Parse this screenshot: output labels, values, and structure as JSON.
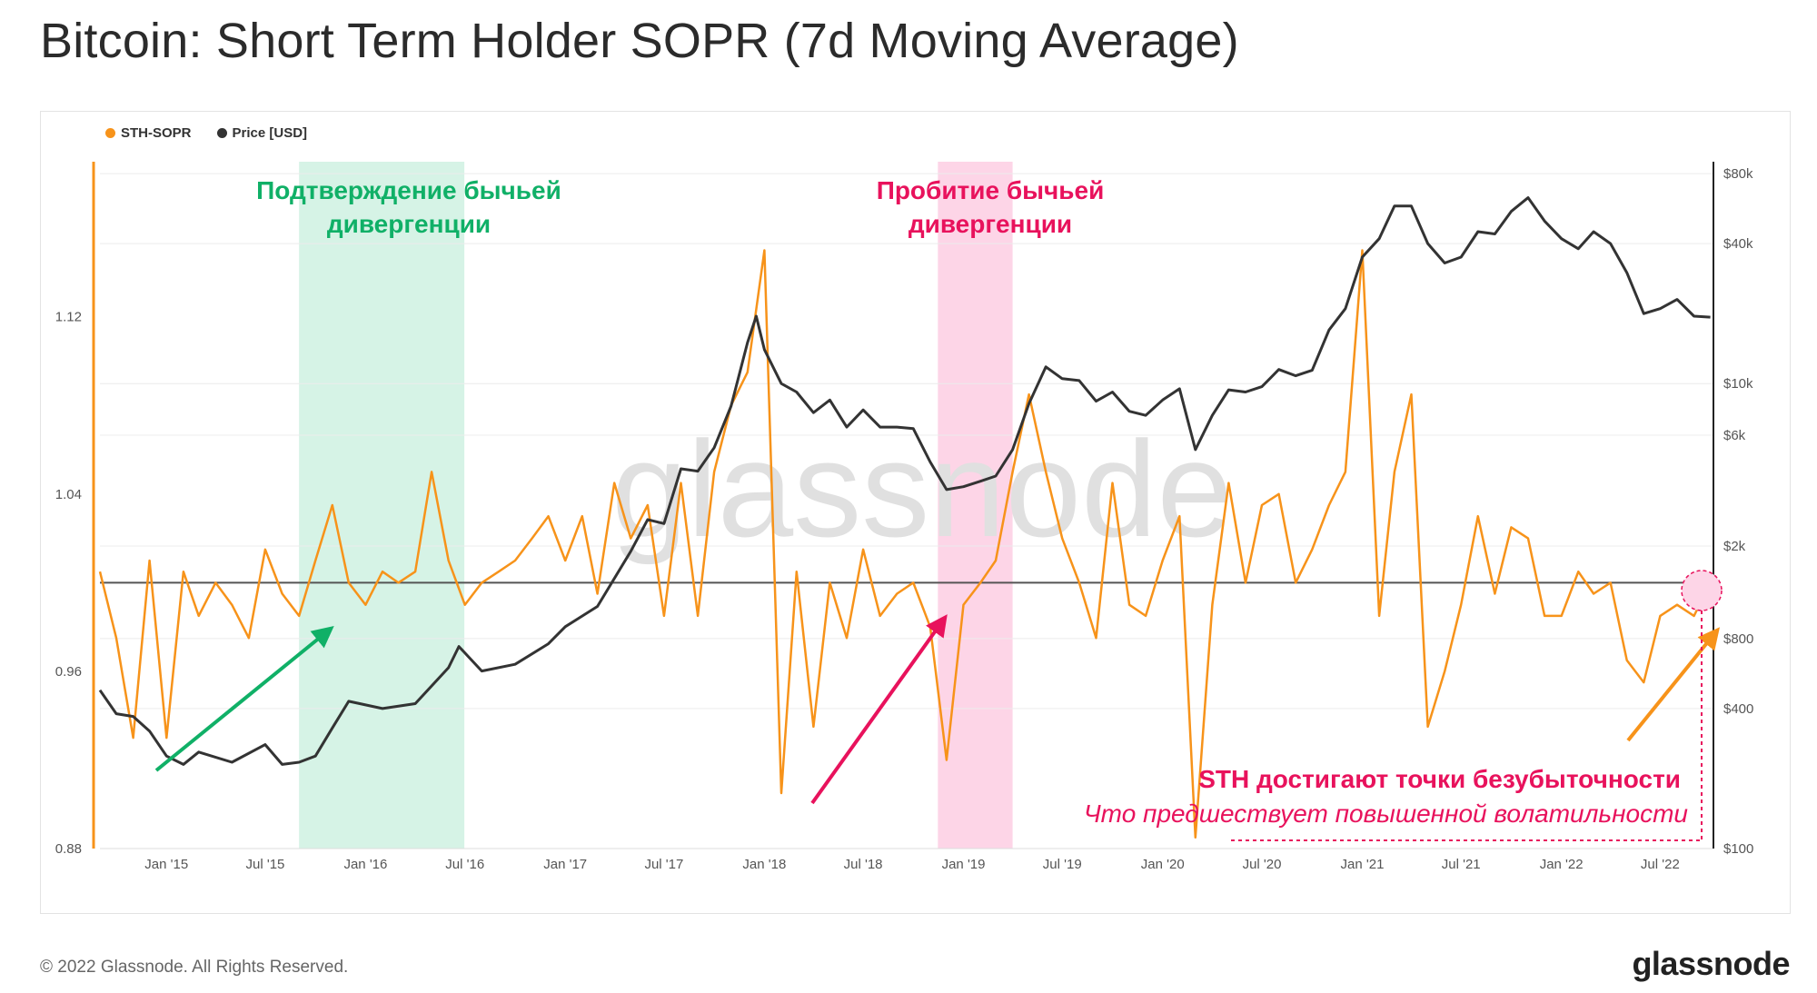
{
  "title": "Bitcoin: Short Term Holder SOPR (7d Moving Average)",
  "legend": [
    {
      "label": "STH-SOPR",
      "color": "#f7931a"
    },
    {
      "label": "Price [USD]",
      "color": "#333333"
    }
  ],
  "watermark": "glassnode",
  "annotations": {
    "confirm": "Подтверждение бычьей дивергенции",
    "breakout": "Пробитие бычьей дивергенции",
    "breakeven": "STH достигают точки безубыточности",
    "volatility": "Что предшествует повышенной волатильности"
  },
  "footer": {
    "copyright": "© 2022 Glassnode. All Rights Reserved.",
    "logo": "glassnode"
  },
  "colors": {
    "sopr": "#f7931a",
    "price": "#333333",
    "green_zone": "#d6f3e6",
    "pink_zone": "#fdd5e7",
    "green_text": "#10b067",
    "pink_text": "#e8125c"
  },
  "chart_data": {
    "type": "line",
    "title": "Bitcoin: Short Term Holder SOPR (7d Moving Average)",
    "x_ticks": [
      "Jan '15",
      "Jul '15",
      "Jan '16",
      "Jul '16",
      "Jan '17",
      "Jul '17",
      "Jan '18",
      "Jul '18",
      "Jan '19",
      "Jul '19",
      "Jan '20",
      "Jul '20",
      "Jan '21",
      "Jul '21",
      "Jan '22",
      "Jul '22"
    ],
    "x_range": [
      "2014-09-01",
      "2022-10-05"
    ],
    "left_axis": {
      "ticks": [
        "0.88",
        "0.96",
        "1.04",
        "1.12"
      ],
      "ylim": [
        0.88,
        1.19
      ]
    },
    "right_axis": {
      "scale": "log",
      "ticks": [
        "$100",
        "$400",
        "$800",
        "$2k",
        "$6k",
        "$10k",
        "$40k",
        "$80k"
      ],
      "ylim": [
        100,
        90000
      ]
    },
    "reference_line": 1.0,
    "shaded_periods": [
      {
        "name": "confirm",
        "start": "2015-09-01",
        "end": "2016-06-30"
      },
      {
        "name": "breakout",
        "start": "2018-11-15",
        "end": "2019-04-01"
      }
    ],
    "series": [
      {
        "name": "STH-SOPR",
        "axis": "left",
        "x": [
          "2014-09-01",
          "2014-10-01",
          "2014-11-01",
          "2014-12-01",
          "2015-01-01",
          "2015-02-01",
          "2015-03-01",
          "2015-04-01",
          "2015-05-01",
          "2015-06-01",
          "2015-07-01",
          "2015-08-01",
          "2015-09-01",
          "2015-10-01",
          "2015-11-01",
          "2015-12-01",
          "2016-01-01",
          "2016-02-01",
          "2016-03-01",
          "2016-04-01",
          "2016-05-01",
          "2016-06-01",
          "2016-07-01",
          "2016-08-01",
          "2016-09-01",
          "2016-10-01",
          "2016-11-01",
          "2016-12-01",
          "2017-01-01",
          "2017-02-01",
          "2017-03-01",
          "2017-04-01",
          "2017-05-01",
          "2017-06-01",
          "2017-07-01",
          "2017-08-01",
          "2017-09-01",
          "2017-10-01",
          "2017-11-01",
          "2017-12-01",
          "2018-01-01",
          "2018-02-01",
          "2018-03-01",
          "2018-04-01",
          "2018-05-01",
          "2018-06-01",
          "2018-07-01",
          "2018-08-01",
          "2018-09-01",
          "2018-10-01",
          "2018-11-01",
          "2018-12-01",
          "2019-01-01",
          "2019-02-01",
          "2019-03-01",
          "2019-04-01",
          "2019-05-01",
          "2019-06-01",
          "2019-07-01",
          "2019-08-01",
          "2019-09-01",
          "2019-10-01",
          "2019-11-01",
          "2019-12-01",
          "2020-01-01",
          "2020-02-01",
          "2020-03-01",
          "2020-04-01",
          "2020-05-01",
          "2020-06-01",
          "2020-07-01",
          "2020-08-01",
          "2020-09-01",
          "2020-10-01",
          "2020-11-01",
          "2020-12-01",
          "2021-01-01",
          "2021-02-01",
          "2021-03-01",
          "2021-04-01",
          "2021-05-01",
          "2021-06-01",
          "2021-07-01",
          "2021-08-01",
          "2021-09-01",
          "2021-10-01",
          "2021-11-01",
          "2021-12-01",
          "2022-01-01",
          "2022-02-01",
          "2022-03-01",
          "2022-04-01",
          "2022-05-01",
          "2022-06-01",
          "2022-07-01",
          "2022-08-01",
          "2022-09-01",
          "2022-10-01"
        ],
        "values": [
          1.005,
          0.975,
          0.93,
          1.01,
          0.93,
          1.005,
          0.985,
          1.0,
          0.99,
          0.975,
          1.015,
          0.995,
          0.985,
          1.01,
          1.035,
          1.0,
          0.99,
          1.005,
          1.0,
          1.005,
          1.05,
          1.01,
          0.99,
          1.0,
          1.005,
          1.01,
          1.02,
          1.03,
          1.01,
          1.03,
          0.995,
          1.045,
          1.02,
          1.035,
          0.985,
          1.045,
          0.985,
          1.05,
          1.08,
          1.095,
          1.15,
          0.905,
          1.005,
          0.935,
          1.0,
          0.975,
          1.015,
          0.985,
          0.995,
          1.0,
          0.98,
          0.92,
          0.99,
          1.0,
          1.01,
          1.05,
          1.085,
          1.05,
          1.02,
          1.0,
          0.975,
          1.045,
          0.99,
          0.985,
          1.01,
          1.03,
          0.885,
          0.99,
          1.045,
          1.0,
          1.035,
          1.04,
          1.0,
          1.015,
          1.035,
          1.05,
          1.15,
          0.985,
          1.05,
          1.085,
          0.935,
          0.96,
          0.99,
          1.03,
          0.995,
          1.025,
          1.02,
          0.985,
          0.985,
          1.005,
          0.995,
          1.0,
          0.965,
          0.955,
          0.985,
          0.99,
          0.985,
          1.0
        ]
      },
      {
        "name": "Price [USD]",
        "axis": "right",
        "x": [
          "2014-09-01",
          "2014-10-01",
          "2014-11-01",
          "2014-12-01",
          "2015-01-01",
          "2015-02-01",
          "2015-03-01",
          "2015-05-01",
          "2015-07-01",
          "2015-08-01",
          "2015-09-01",
          "2015-10-01",
          "2015-11-01",
          "2015-12-01",
          "2016-02-01",
          "2016-04-01",
          "2016-06-01",
          "2016-06-20",
          "2016-08-01",
          "2016-10-01",
          "2016-12-01",
          "2017-01-01",
          "2017-03-01",
          "2017-05-01",
          "2017-06-01",
          "2017-07-01",
          "2017-08-01",
          "2017-09-01",
          "2017-10-01",
          "2017-11-01",
          "2017-12-01",
          "2017-12-17",
          "2018-01-01",
          "2018-02-01",
          "2018-03-01",
          "2018-04-01",
          "2018-05-01",
          "2018-06-01",
          "2018-07-01",
          "2018-08-01",
          "2018-09-01",
          "2018-10-01",
          "2018-11-01",
          "2018-12-01",
          "2019-01-01",
          "2019-02-01",
          "2019-03-01",
          "2019-04-01",
          "2019-05-01",
          "2019-06-01",
          "2019-07-01",
          "2019-08-01",
          "2019-09-01",
          "2019-10-01",
          "2019-11-01",
          "2019-12-01",
          "2020-01-01",
          "2020-02-01",
          "2020-03-01",
          "2020-04-01",
          "2020-05-01",
          "2020-06-01",
          "2020-07-01",
          "2020-08-01",
          "2020-09-01",
          "2020-10-01",
          "2020-11-01",
          "2020-12-01",
          "2021-01-01",
          "2021-02-01",
          "2021-03-01",
          "2021-04-01",
          "2021-05-01",
          "2021-06-01",
          "2021-07-01",
          "2021-08-01",
          "2021-09-01",
          "2021-10-01",
          "2021-11-01",
          "2021-12-01",
          "2022-01-01",
          "2022-02-01",
          "2022-03-01",
          "2022-04-01",
          "2022-05-01",
          "2022-06-01",
          "2022-07-01",
          "2022-08-01",
          "2022-09-01",
          "2022-10-01"
        ],
        "values": [
          480,
          380,
          370,
          320,
          250,
          230,
          260,
          235,
          280,
          230,
          235,
          250,
          330,
          430,
          400,
          420,
          600,
          740,
          580,
          620,
          760,
          900,
          1100,
          1900,
          2600,
          2500,
          4300,
          4200,
          5300,
          8000,
          15000,
          19500,
          14000,
          10000,
          9200,
          7500,
          8500,
          6500,
          7700,
          6500,
          6500,
          6400,
          4600,
          3500,
          3600,
          3800,
          4000,
          5200,
          8200,
          11800,
          10500,
          10300,
          8400,
          9200,
          7600,
          7300,
          8500,
          9500,
          5200,
          7300,
          9400,
          9200,
          9700,
          11500,
          10800,
          11400,
          17000,
          21000,
          35000,
          42000,
          58000,
          58000,
          40000,
          33000,
          35000,
          45000,
          44000,
          55000,
          63000,
          50000,
          42000,
          38000,
          45000,
          40000,
          30000,
          20000,
          21000,
          23000,
          19500,
          19300
        ]
      }
    ]
  }
}
